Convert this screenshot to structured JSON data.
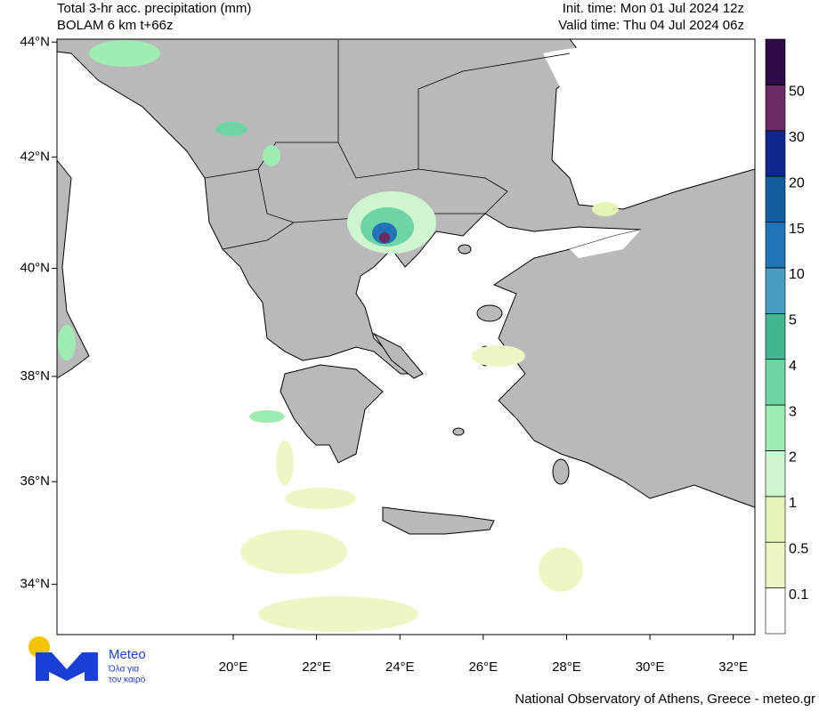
{
  "header": {
    "title": "Total 3-hr acc. precipitation (mm)",
    "model": "BOLAM 6 km t+66z",
    "init": "Init. time: Mon 01 Jul 2024 12z",
    "valid": "Valid time: Thu 04 Jul 2024 06z"
  },
  "axes": {
    "xlim": [
      15.77,
      32.52
    ],
    "ylim": [
      33.0,
      44.05
    ],
    "lat_ticks": [
      {
        "value": 44,
        "label": "44°N"
      },
      {
        "value": 42,
        "label": "42°N"
      },
      {
        "value": 40,
        "label": "40°N"
      },
      {
        "value": 38,
        "label": "38°N"
      },
      {
        "value": 36,
        "label": "36°N"
      },
      {
        "value": 34,
        "label": "34°N"
      }
    ],
    "lon_ticks": [
      {
        "value": 20,
        "label": "20°E"
      },
      {
        "value": 22,
        "label": "22°E"
      },
      {
        "value": 24,
        "label": "24°E"
      },
      {
        "value": 26,
        "label": "26°E"
      },
      {
        "value": 28,
        "label": "28°E"
      },
      {
        "value": 30,
        "label": "30°E"
      },
      {
        "value": 32,
        "label": "32°E"
      }
    ]
  },
  "colorbar": {
    "levels": [
      0.1,
      0.5,
      1,
      2,
      3,
      4,
      5,
      10,
      15,
      20,
      30,
      50
    ],
    "colors": [
      "#ffffff",
      "#eef6c4",
      "#e4f3b6",
      "#cdf5cf",
      "#9eecb4",
      "#6fd4a4",
      "#3fb793",
      "#4a9cc0",
      "#1f75b8",
      "#135e9c",
      "#10268f",
      "#6b2b62",
      "#2c0b48"
    ]
  },
  "logo": {
    "name": "Meteo",
    "tagline": [
      "Όλα για",
      "τον καιρό"
    ]
  },
  "footer": "National Observatory of Athens, Greece - meteo.gr"
}
